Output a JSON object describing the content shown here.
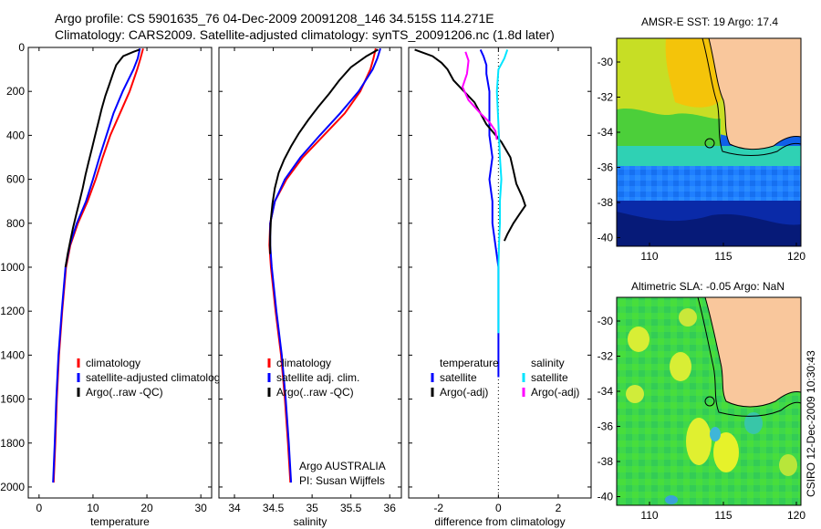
{
  "header": {
    "line1": "Argo profile: CS 5901635_76 04-Dec-2009 20091208_146 34.515S 114.271E",
    "line2": "Climatology: CARS2009. Satellite-adjusted climatology: synTS_20091206.nc (1.8d later)"
  },
  "side_label": "CSIRO 12-Dec-2009 10:30:43",
  "colors": {
    "climatology": "#ff0000",
    "satellite": "#0000ff",
    "argo": "#000000",
    "satellite_salinity": "#00e5ff",
    "argo_salinity": "#ff00ff",
    "land": "#f9c79c",
    "coast_shelf": "#1dc41d"
  },
  "chart_data": [
    {
      "type": "line",
      "xlabel": "temperature",
      "xlim": [
        -2,
        32
      ],
      "ylim": [
        2050,
        0
      ],
      "xticks": [
        0,
        10,
        20,
        30
      ],
      "yticks": [
        0,
        200,
        400,
        600,
        800,
        1000,
        1200,
        1400,
        1600,
        1800,
        2000
      ],
      "legend": "lower-right",
      "series": [
        {
          "name": "climatology",
          "color": "#ff0000",
          "x": [
            19.3,
            18.8,
            18.2,
            16.8,
            15.0,
            13.2,
            11.8,
            10.5,
            9.0,
            7.2,
            5.8,
            5.0,
            4.3,
            3.7,
            3.3,
            3.0,
            2.7
          ],
          "y": [
            5,
            50,
            100,
            200,
            300,
            400,
            500,
            600,
            700,
            800,
            900,
            1000,
            1200,
            1400,
            1600,
            1800,
            1980
          ]
        },
        {
          "name": "satellite-adjusted climatology",
          "color": "#0000ff",
          "x": [
            18.7,
            18.3,
            17.5,
            15.5,
            13.8,
            12.5,
            11.2,
            10.0,
            8.7,
            7.0,
            5.7,
            4.9,
            4.2,
            3.6,
            3.2,
            2.9,
            2.6
          ],
          "y": [
            5,
            50,
            100,
            200,
            300,
            400,
            500,
            600,
            700,
            800,
            900,
            1000,
            1200,
            1400,
            1600,
            1800,
            1980
          ]
        },
        {
          "name": "Argo(..raw -QC)",
          "color": "#000000",
          "x": [
            18.6,
            17.5,
            15.6,
            14.3,
            13.7,
            13.0,
            12.3,
            11.6,
            11.0,
            10.4,
            9.8,
            9.2,
            8.6,
            8.1,
            7.5,
            6.9,
            6.3,
            5.8,
            5.3,
            4.9
          ],
          "y": [
            10,
            20,
            40,
            80,
            120,
            170,
            220,
            280,
            340,
            400,
            460,
            520,
            580,
            640,
            700,
            760,
            820,
            880,
            940,
            1000
          ]
        }
      ],
      "legend_entries": [
        "climatology",
        "satellite-adjusted climatology",
        "Argo(..raw -QC)"
      ]
    },
    {
      "type": "line",
      "xlabel": "salinity",
      "xlim": [
        33.8,
        36.15
      ],
      "ylim": [
        2050,
        0
      ],
      "xticks": [
        34,
        34.5,
        35,
        35.5,
        36
      ],
      "xtick_labels": [
        "34",
        "34.5",
        "35",
        "35.5",
        "36"
      ],
      "legend": "lower-right",
      "series": [
        {
          "name": "climatology",
          "color": "#ff0000",
          "x": [
            35.82,
            35.79,
            35.75,
            35.62,
            35.42,
            35.15,
            34.88,
            34.67,
            34.52,
            34.46,
            34.45,
            34.47,
            34.53,
            34.6,
            34.65,
            34.69,
            34.72
          ],
          "y": [
            5,
            50,
            100,
            200,
            300,
            400,
            500,
            600,
            700,
            800,
            900,
            1000,
            1200,
            1400,
            1600,
            1800,
            1980
          ]
        },
        {
          "name": "satellite adj. clim.",
          "color": "#0000ff",
          "x": [
            35.88,
            35.84,
            35.78,
            35.6,
            35.36,
            35.1,
            34.85,
            34.65,
            34.52,
            34.46,
            34.46,
            34.48,
            34.54,
            34.61,
            34.66,
            34.7,
            34.73
          ],
          "y": [
            5,
            50,
            100,
            200,
            300,
            400,
            500,
            600,
            700,
            800,
            900,
            1000,
            1200,
            1400,
            1600,
            1800,
            1980
          ]
        },
        {
          "name": "Argo(..raw -QC)",
          "color": "#000000",
          "x": [
            35.85,
            35.7,
            35.5,
            35.35,
            35.22,
            35.08,
            34.95,
            34.83,
            34.73,
            34.64,
            34.57,
            34.52,
            34.49,
            34.47,
            34.46,
            34.46
          ],
          "y": [
            10,
            40,
            90,
            150,
            210,
            270,
            330,
            390,
            450,
            510,
            570,
            640,
            710,
            780,
            860,
            940
          ]
        }
      ],
      "legend_entries": [
        "climatology",
        "satellite adj. clim.",
        "Argo(..raw -QC)"
      ],
      "annotations": [
        "Argo AUSTRALIA",
        "PI: Susan Wijffels"
      ]
    },
    {
      "type": "line",
      "xlabel": "difference from climatology",
      "xlim": [
        -3,
        3.1
      ],
      "ylim": [
        2050,
        0
      ],
      "xticks": [
        -2,
        0,
        2
      ],
      "zero_line": "dotted",
      "legend": "lower-right",
      "series": [
        {
          "name": "temperature satellite",
          "color": "#0000ff",
          "x": [
            -0.6,
            -0.5,
            -0.4,
            -0.4,
            -0.3,
            -0.3,
            -0.3,
            -0.2,
            -0.3,
            -0.2,
            -0.2,
            -0.1,
            0.0,
            0.0,
            0.0,
            0.0
          ],
          "y": [
            10,
            40,
            80,
            120,
            200,
            300,
            400,
            500,
            600,
            700,
            800,
            900,
            1000,
            1100,
            1300,
            1500
          ]
        },
        {
          "name": "temperature Argo(-adj)",
          "color": "#000000",
          "x": [
            -2.8,
            -2.6,
            -2.2,
            -1.9,
            -1.7,
            -1.5,
            -0.8,
            -0.4,
            0.1,
            0.4,
            0.5,
            0.6,
            0.8,
            0.9,
            0.7,
            0.5,
            0.3,
            0.2
          ],
          "y": [
            10,
            20,
            40,
            70,
            100,
            150,
            250,
            350,
            430,
            500,
            560,
            620,
            680,
            720,
            760,
            800,
            850,
            880
          ]
        },
        {
          "name": "salinity satellite",
          "color": "#00e5ff",
          "x": [
            0.3,
            0.2,
            0.0,
            -0.05,
            0.0,
            0.05,
            0.1,
            0.05,
            0.05,
            0.02,
            0.0,
            0.0,
            0.0
          ],
          "y": [
            10,
            50,
            100,
            200,
            350,
            500,
            600,
            700,
            800,
            900,
            1000,
            1200,
            1300
          ]
        },
        {
          "name": "salinity Argo(-adj)",
          "color": "#ff00ff",
          "x": [
            -1.1,
            -1.0,
            -1.05,
            -1.2,
            -1.0,
            -0.6,
            -0.3,
            -0.1,
            -0.05
          ],
          "y": [
            20,
            60,
            120,
            180,
            240,
            300,
            340,
            380,
            420
          ]
        }
      ],
      "legend_entries": [
        "temperature",
        "satellite",
        "Argo(-adj)",
        "salinity",
        "satellite",
        "Argo(-adj)"
      ]
    }
  ],
  "maps": [
    {
      "title": "AMSR-E SST: 19 Argo: 17.4",
      "lon_ticks": [
        "110",
        "115",
        "120"
      ],
      "lat_ticks": [
        "-30",
        "-32",
        "-34",
        "-36",
        "-38",
        "-40"
      ],
      "float_position": {
        "lon": 114.27,
        "lat": -34.52
      }
    },
    {
      "title": "Altimetric SLA: -0.05 Argo: NaN",
      "lon_ticks": [
        "110",
        "115",
        "120"
      ],
      "lat_ticks": [
        "-30",
        "-32",
        "-34",
        "-36",
        "-38",
        "-40"
      ],
      "float_position": {
        "lon": 114.27,
        "lat": -34.52
      }
    }
  ]
}
